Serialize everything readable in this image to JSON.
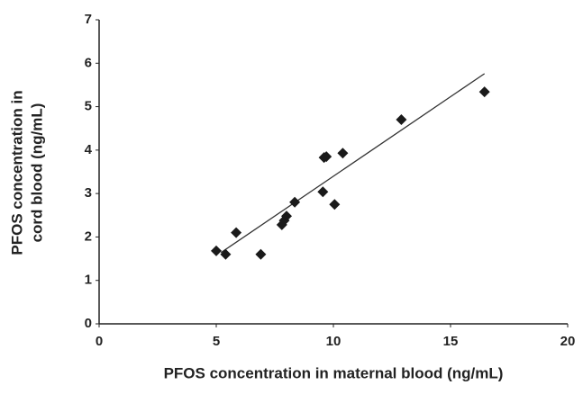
{
  "chart_data": {
    "type": "scatter",
    "x_label": "PFOS concentration in maternal blood (ng/mL)",
    "y_label": [
      "PFOS concentration in",
      "cord blood (ng/mL)"
    ],
    "x": [
      5.0,
      5.4,
      5.85,
      6.9,
      7.8,
      7.9,
      8.0,
      8.35,
      9.55,
      9.6,
      9.7,
      10.05,
      10.4,
      12.9,
      16.45
    ],
    "y": [
      1.68,
      1.6,
      2.1,
      1.6,
      2.28,
      2.38,
      2.48,
      2.8,
      3.04,
      3.83,
      3.85,
      2.75,
      3.93,
      4.7,
      5.34
    ],
    "color": "#1a1a1a",
    "trend_line": {
      "x": [
        5.2,
        16.45
      ],
      "y": [
        1.64,
        5.76
      ]
    },
    "xlim": [
      0,
      20
    ],
    "xticks": [
      0,
      5,
      10,
      15,
      20
    ],
    "ylim": [
      0,
      7
    ],
    "yticks": [
      0,
      1,
      2,
      3,
      4,
      5,
      6,
      7
    ]
  }
}
